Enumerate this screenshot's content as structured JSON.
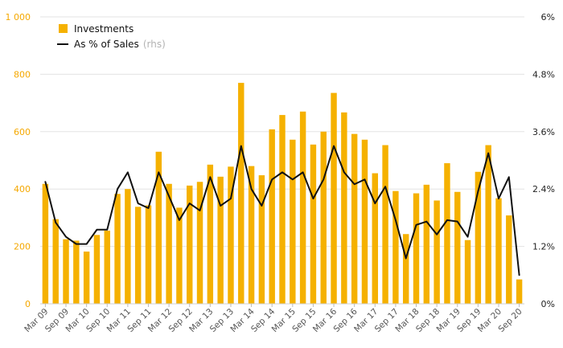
{
  "colors": {
    "bar": "#f5b100",
    "line": "#111111",
    "left_axis_text": "#f5a800",
    "grid": "#e3e3e3",
    "legend_suffix": "#b3b3b3"
  },
  "chart_data": {
    "type": "bar",
    "legend_position": "top-left",
    "grid": true,
    "x_tick_labels": [
      "Mar 09",
      "Sep 09",
      "Mar 10",
      "Sep 10",
      "Mar 11",
      "Sep 11",
      "Mar 12",
      "Sep 12",
      "Mar 13",
      "Sep 13",
      "Mar 14",
      "Sep 14",
      "Mar 15",
      "Sep 15",
      "Mar 16",
      "Sep 16",
      "Mar 17",
      "Sep 17",
      "Mar 18",
      "Sep 18",
      "Mar 19",
      "Sep 19",
      "Mar 20",
      "Sep 20"
    ],
    "y_left": {
      "ticks": [
        "0",
        "200",
        "400",
        "600",
        "800",
        "1 000"
      ],
      "range": [
        0,
        1000
      ]
    },
    "y_right": {
      "ticks": [
        "0%",
        "1.2%",
        "2.4%",
        "3.6%",
        "4.8%",
        "6%"
      ],
      "range": [
        0,
        6
      ]
    },
    "legend": [
      {
        "label": "Investments",
        "suffix": ""
      },
      {
        "label": "As % of Sales",
        "suffix": "(rhs)"
      }
    ],
    "series": [
      {
        "name": "Investments",
        "type": "bar",
        "axis": "left",
        "values": [
          418,
          295,
          225,
          220,
          182,
          240,
          255,
          383,
          400,
          338,
          343,
          530,
          418,
          335,
          412,
          425,
          485,
          443,
          478,
          770,
          480,
          448,
          608,
          658,
          572,
          670,
          555,
          600,
          735,
          667,
          592,
          572,
          455,
          553,
          393,
          243,
          385,
          415,
          360,
          490,
          390,
          222,
          460,
          553,
          368,
          308,
          85
        ]
      },
      {
        "name": "As % of Sales",
        "type": "line",
        "axis": "right",
        "values": [
          2.55,
          1.7,
          1.4,
          1.25,
          1.25,
          1.55,
          1.55,
          2.4,
          2.75,
          2.1,
          2.0,
          2.75,
          2.25,
          1.75,
          2.1,
          1.95,
          2.65,
          2.05,
          2.2,
          3.3,
          2.4,
          2.05,
          2.6,
          2.75,
          2.6,
          2.75,
          2.2,
          2.6,
          3.3,
          2.75,
          2.5,
          2.6,
          2.1,
          2.45,
          1.75,
          0.95,
          1.65,
          1.72,
          1.45,
          1.75,
          1.72,
          1.4,
          2.35,
          3.15,
          2.2,
          2.65,
          0.6
        ]
      }
    ]
  }
}
